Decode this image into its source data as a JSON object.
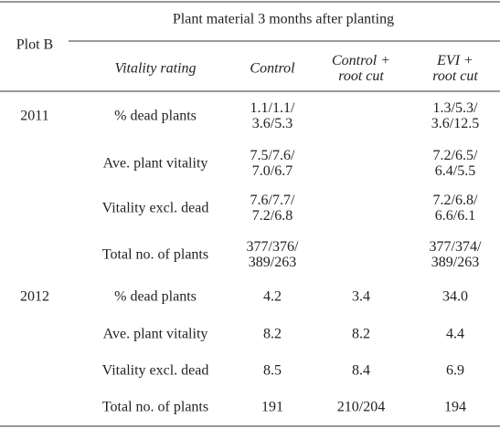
{
  "header": {
    "corner": "Plot B",
    "span": "Plant material 3 months after planting",
    "columns": [
      [
        "Vitality rating"
      ],
      [
        "Control"
      ],
      [
        "Control +",
        "root cut"
      ],
      [
        "EVI +",
        "root cut"
      ]
    ]
  },
  "table": {
    "groups": [
      {
        "year": "2011",
        "rows": [
          [
            [
              "% dead plants"
            ],
            [
              "1.1/1.1/",
              "3.6/5.3"
            ],
            null,
            [
              "1.3/5.3/",
              "3.6/12.5"
            ]
          ],
          [
            [
              "Ave. plant vitality"
            ],
            [
              "7.5/7.6/",
              "7.0/6.7"
            ],
            null,
            [
              "7.2/6.5/",
              "6.4/5.5"
            ]
          ],
          [
            [
              "Vitality excl. dead"
            ],
            [
              "7.6/7.7/",
              "7.2/6.8"
            ],
            null,
            [
              "7.2/6.8/",
              "6.6/6.1"
            ]
          ],
          [
            [
              "Total no. of plants"
            ],
            [
              "377/376/",
              "389/263"
            ],
            null,
            [
              "377/374/",
              "389/263"
            ]
          ]
        ]
      },
      {
        "year": "2012",
        "rows": [
          [
            [
              "% dead plants"
            ],
            [
              "4.2"
            ],
            [
              "3.4"
            ],
            [
              "34.0"
            ]
          ],
          [
            [
              "Ave. plant vitality"
            ],
            [
              "8.2"
            ],
            [
              "8.2"
            ],
            [
              "4.4"
            ]
          ],
          [
            [
              "Vitality excl. dead"
            ],
            [
              "8.5"
            ],
            [
              "8.4"
            ],
            [
              "6.9"
            ]
          ],
          [
            [
              "Total no. of plants"
            ],
            [
              "191"
            ],
            [
              "210/204"
            ],
            [
              "194"
            ]
          ]
        ]
      }
    ]
  }
}
